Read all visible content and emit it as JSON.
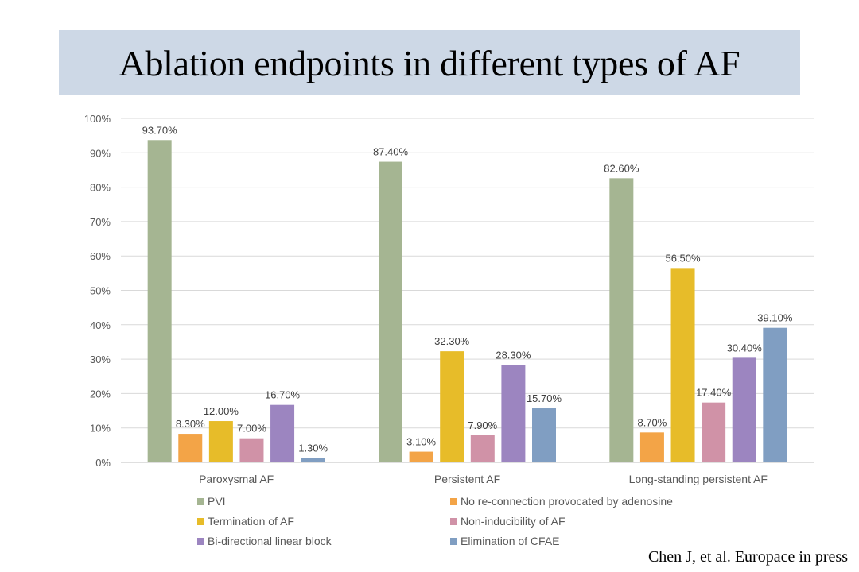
{
  "title": "Ablation endpoints in different types of AF",
  "citation": "Chen J, et al. Europace in press",
  "chart_data": {
    "type": "bar",
    "title": "Ablation endpoints in different types of AF",
    "xlabel": "",
    "ylabel": "",
    "ylim": [
      0,
      100
    ],
    "yticks": [
      0,
      10,
      20,
      30,
      40,
      50,
      60,
      70,
      80,
      90,
      100
    ],
    "ytick_labels": [
      "0%",
      "10%",
      "20%",
      "30%",
      "40%",
      "50%",
      "60%",
      "70%",
      "80%",
      "90%",
      "100%"
    ],
    "grid": true,
    "legend_position": "bottom",
    "categories": [
      "Paroxysmal AF",
      "Persistent AF",
      "Long-standing persistent AF"
    ],
    "series": [
      {
        "name": "PVI",
        "color": "#a5b592",
        "values": [
          93.7,
          87.4,
          82.6
        ],
        "labels": [
          "93.70%",
          "87.40%",
          "82.60%"
        ]
      },
      {
        "name": "No re-connection provocated by adenosine",
        "color": "#f3a447",
        "values": [
          8.3,
          3.1,
          8.7
        ],
        "labels": [
          "8.30%",
          "3.10%",
          "8.70%"
        ]
      },
      {
        "name": "Termination of AF",
        "color": "#e7bc29",
        "values": [
          12.0,
          32.3,
          56.5
        ],
        "labels": [
          "12.00%",
          "32.30%",
          "56.50%"
        ]
      },
      {
        "name": "Non-inducibility of AF",
        "color": "#d092a7",
        "values": [
          7.0,
          7.9,
          17.4
        ],
        "labels": [
          "7.00%",
          "7.90%",
          "17.40%"
        ]
      },
      {
        "name": "Bi-directional linear block",
        "color": "#9c85c0",
        "values": [
          16.7,
          28.3,
          30.4
        ],
        "labels": [
          "16.70%",
          "28.30%",
          "30.40%"
        ]
      },
      {
        "name": "Elimination of CFAE",
        "color": "#809ec2",
        "values": [
          1.3,
          15.7,
          39.1
        ],
        "labels": [
          "1.30%",
          "15.70%",
          "39.10%"
        ]
      }
    ]
  }
}
